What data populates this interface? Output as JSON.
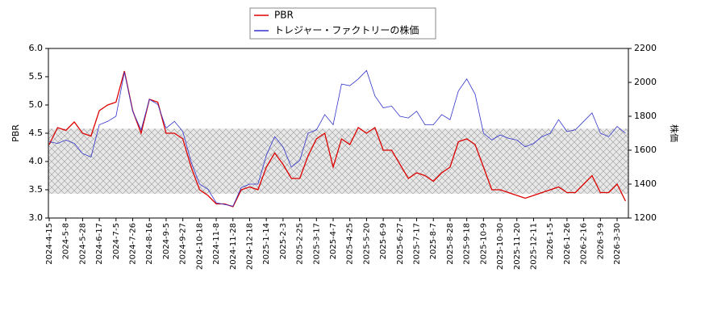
{
  "chart_data": {
    "type": "line",
    "x": [
      "2024-4-15",
      null,
      "2024-5-8",
      null,
      "2024-5-28",
      null,
      "2024-6-17",
      null,
      "2024-7-5",
      null,
      "2024-7-26",
      null,
      "2024-8-16",
      null,
      "2024-9-5",
      null,
      "2024-9-27",
      null,
      "2024-10-18",
      null,
      "2024-11-8",
      null,
      "2024-11-28",
      null,
      "2024-12-18",
      null,
      "2025-1-14",
      null,
      "2025-2-3",
      null,
      "2025-2-25",
      null,
      "2025-3-17",
      null,
      "2025-4-7",
      null,
      "2025-4-25",
      null,
      "2025-5-20",
      null,
      "2025-6-9",
      null,
      "2025-6-27",
      null,
      "2025-7-17",
      null,
      "2025-8-7",
      null,
      "2025-8-28",
      null,
      "2025-9-18",
      null,
      "2025-10-9",
      null,
      "2025-10-30",
      null,
      "2025-11-20",
      null,
      "2025-12-11",
      null,
      "2026-1-5",
      null,
      "2026-1-26",
      null,
      "2026-2-16",
      null,
      "2026-3-9",
      null,
      "2026-3-30",
      null
    ],
    "series": [
      {
        "name": "PBR",
        "color": "#dd0000",
        "values": [
          4.3,
          4.6,
          4.55,
          4.7,
          4.5,
          4.45,
          4.9,
          5.0,
          5.05,
          5.6,
          4.9,
          4.5,
          5.1,
          5.05,
          4.5,
          4.5,
          4.4,
          3.9,
          3.5,
          3.4,
          3.25,
          3.25,
          3.2,
          3.5,
          3.55,
          3.5,
          3.9,
          4.15,
          3.95,
          3.7,
          3.7,
          4.1,
          4.4,
          4.5,
          3.9,
          4.4,
          4.3,
          4.6,
          4.5,
          4.6,
          4.2,
          4.2,
          3.95,
          3.7,
          3.8,
          3.75,
          3.65,
          3.8,
          3.9,
          4.35,
          4.4,
          4.3,
          3.9,
          3.5,
          3.5,
          3.45,
          3.4,
          3.35,
          3.4,
          3.45,
          3.5,
          3.55,
          3.45,
          3.45,
          3.6,
          3.75,
          3.45,
          3.45,
          3.6,
          3.3
        ]
      },
      {
        "name": "トレジャー・ファクトリーの株価",
        "color": "#3333cc",
        "axis": "y2",
        "values": [
          1650,
          1640,
          1660,
          1640,
          1580,
          1560,
          1750,
          1770,
          1800,
          2060,
          1830,
          1720,
          1900,
          1870,
          1730,
          1770,
          1710,
          1530,
          1400,
          1370,
          1290,
          1280,
          1270,
          1380,
          1400,
          1400,
          1570,
          1680,
          1620,
          1500,
          1540,
          1700,
          1720,
          1810,
          1750,
          1990,
          1980,
          2020,
          2070,
          1920,
          1850,
          1860,
          1800,
          1790,
          1830,
          1750,
          1750,
          1810,
          1780,
          1950,
          2020,
          1930,
          1700,
          1660,
          1690,
          1670,
          1660,
          1620,
          1640,
          1680,
          1700,
          1780,
          1710,
          1720,
          1770,
          1820,
          1700,
          1680,
          1740,
          1700
        ]
      }
    ],
    "band": [
      3.43,
      4.58
    ],
    "ylabel": "PBR",
    "y2label": "株価",
    "ylim": [
      3,
      6
    ],
    "yticks": [
      {
        "value": 3,
        "label": "3.0"
      },
      3.5,
      {
        "value": 4,
        "label": "4.0"
      },
      4.5,
      {
        "value": 5,
        "label": "5.0"
      },
      5.5,
      {
        "value": 6,
        "label": "6.0"
      }
    ],
    "y2lim": [
      1200,
      2200
    ],
    "y2ticks": [
      1200,
      1400,
      1600,
      1800,
      2000,
      2200
    ]
  }
}
